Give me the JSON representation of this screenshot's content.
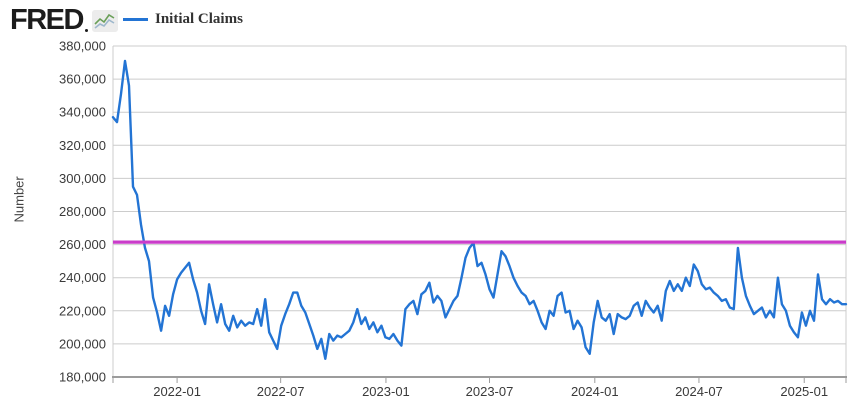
{
  "header": {
    "logo_text": "FRED",
    "legend_label": "Initial Claims"
  },
  "chart_data": {
    "type": "line",
    "title": "",
    "ylabel": "Number",
    "ylim": [
      180000,
      380000
    ],
    "y_ticks": [
      380000,
      360000,
      340000,
      320000,
      300000,
      280000,
      260000,
      240000,
      220000,
      200000,
      180000
    ],
    "x_ticks": [
      "2022-01",
      "2022-07",
      "2023-01",
      "2023-07",
      "2024-01",
      "2024-07",
      "2025-01"
    ],
    "grid": true,
    "legend_position": "top-left",
    "reference_line": {
      "name": "custom-level-line",
      "value": 261500,
      "color": "#ca3cca"
    },
    "series": [
      {
        "name": "Initial Claims",
        "color": "#2374d4",
        "frequency": "weekly",
        "start_week_ending": "2021-09-11",
        "values": [
          337000,
          334000,
          351000,
          371000,
          356000,
          295000,
          290000,
          272000,
          258000,
          250000,
          228000,
          219000,
          208000,
          223000,
          217000,
          230000,
          239000,
          243000,
          246000,
          249000,
          239000,
          231000,
          220000,
          212000,
          236000,
          224000,
          213000,
          224000,
          212000,
          208000,
          217000,
          210000,
          214000,
          211000,
          213000,
          212000,
          221000,
          211000,
          227000,
          207000,
          202000,
          197000,
          211000,
          218000,
          224000,
          231000,
          231000,
          223000,
          219000,
          212000,
          205000,
          197000,
          203000,
          191000,
          206000,
          202000,
          205000,
          204000,
          206000,
          208000,
          213000,
          221000,
          212000,
          216000,
          209000,
          213000,
          207000,
          211000,
          204000,
          203000,
          206000,
          202000,
          199000,
          221000,
          224000,
          226000,
          218000,
          230000,
          232000,
          237000,
          225000,
          229000,
          226000,
          216000,
          221000,
          226000,
          229000,
          240000,
          252000,
          258000,
          261000,
          247000,
          249000,
          242000,
          233000,
          228000,
          242000,
          256000,
          253000,
          247000,
          240000,
          235000,
          231000,
          229000,
          224000,
          226000,
          220000,
          213000,
          209000,
          220000,
          217000,
          229000,
          231000,
          219000,
          220000,
          209000,
          214000,
          210000,
          198000,
          194000,
          213000,
          226000,
          216000,
          214000,
          218000,
          206000,
          218000,
          216000,
          215000,
          217000,
          223000,
          225000,
          217000,
          226000,
          222000,
          219000,
          223000,
          214000,
          232000,
          238000,
          232000,
          236000,
          232000,
          240000,
          235000,
          248000,
          244000,
          236000,
          233000,
          234000,
          231000,
          229000,
          226000,
          227000,
          222000,
          221000,
          258000,
          240000,
          229000,
          223000,
          218000,
          220000,
          222000,
          216000,
          220000,
          216000,
          240000,
          224000,
          220000,
          211000,
          207000,
          204000,
          219000,
          211000,
          220000,
          214000,
          242000,
          227000,
          224000,
          227000,
          225000,
          226000,
          224000,
          224000
        ]
      }
    ],
    "colors": {
      "grid": "#cccccc",
      "axis": "#9c9c9c",
      "tick_text": "#3a3a3a"
    }
  }
}
